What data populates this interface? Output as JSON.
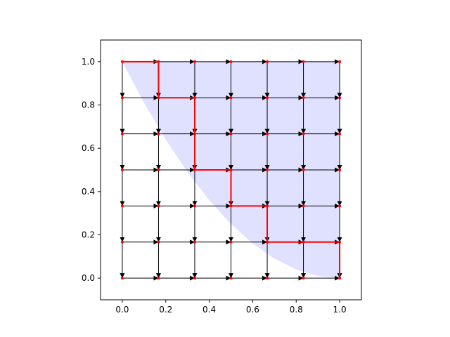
{
  "chart_data": {
    "type": "grid_path",
    "grid": [
      0,
      0.1667,
      0.3333,
      0.5,
      0.6667,
      0.8333,
      1
    ],
    "node_color": "#ff0000",
    "edge_color": "#000000",
    "path": {
      "color": "#ff0000",
      "x": [
        0,
        0.1667,
        0.1667,
        0.3333,
        0.3333,
        0.5,
        0.5,
        0.6667,
        0.6667,
        1,
        1
      ],
      "y": [
        1,
        1,
        0.8333,
        0.8333,
        0.5,
        0.5,
        0.3333,
        0.3333,
        0.1667,
        0.1667,
        0
      ]
    },
    "region": {
      "color": "#0000ff",
      "x": [
        0,
        0.1,
        0.2,
        0.3,
        0.4,
        0.5,
        0.6,
        0.7,
        0.8,
        0.9,
        1
      ],
      "y": [
        1,
        0.81,
        0.64,
        0.49,
        0.36,
        0.25,
        0.16,
        0.09,
        0.04,
        0.01,
        0
      ]
    },
    "xlim": [
      -0.1,
      1.1
    ],
    "ylim": [
      -0.1,
      1.1
    ],
    "xticks": [
      {
        "value": 0,
        "label": "0.0"
      },
      0.2,
      0.4,
      0.6,
      0.8,
      {
        "value": 1,
        "label": "1.0"
      }
    ],
    "yticks": [
      {
        "value": 0,
        "label": "0.0"
      },
      0.2,
      0.4,
      0.6,
      0.8,
      {
        "value": 1,
        "label": "1.0"
      }
    ]
  }
}
